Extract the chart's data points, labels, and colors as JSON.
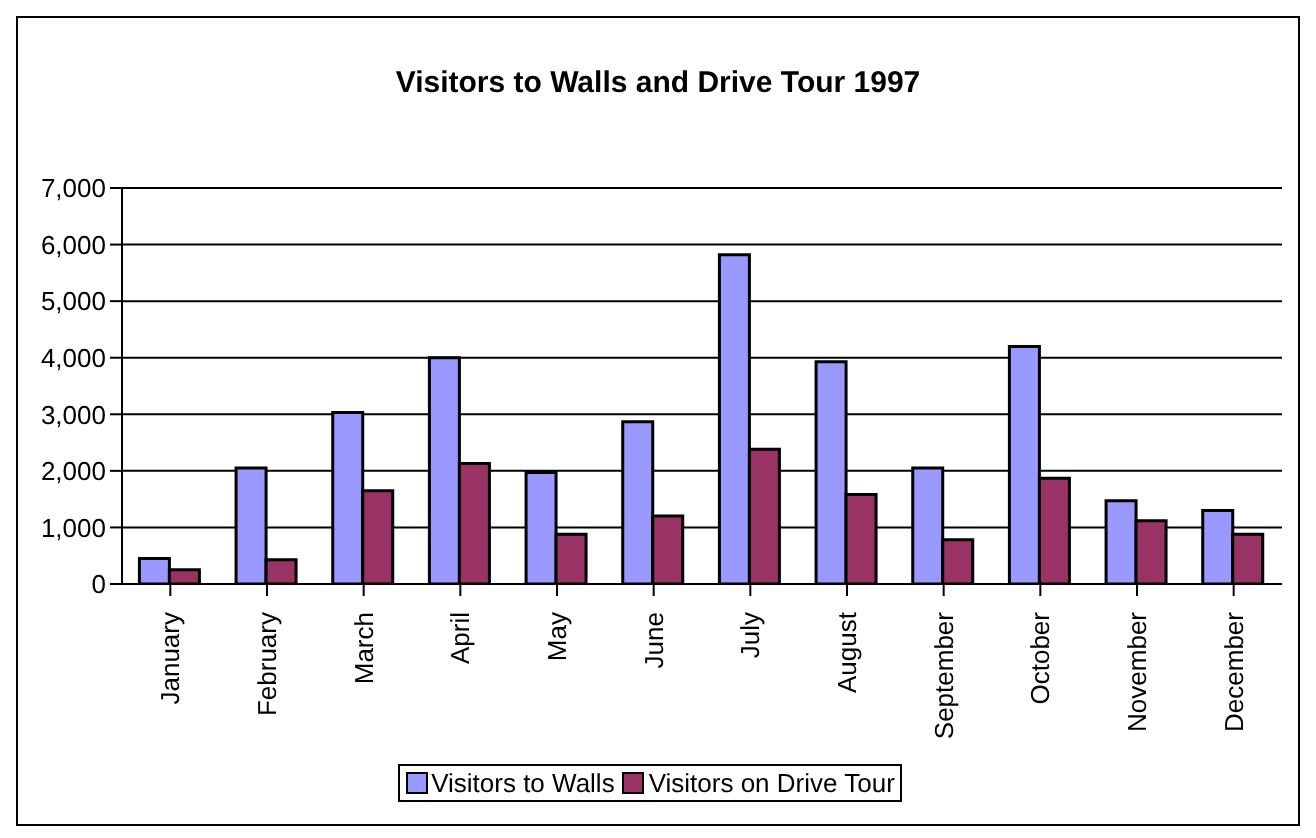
{
  "chart_data": {
    "type": "bar",
    "title": "Visitors to Walls and Drive Tour 1997",
    "categories": [
      "January",
      "February",
      "March",
      "April",
      "May",
      "June",
      "July",
      "August",
      "September",
      "October",
      "November",
      "December"
    ],
    "series": [
      {
        "name": "Visitors to Walls",
        "color": "#9999ff",
        "values": [
          450,
          2050,
          3030,
          4000,
          1970,
          2870,
          5820,
          3930,
          2050,
          4200,
          1470,
          1300
        ]
      },
      {
        "name": "Visitors on Drive Tour",
        "color": "#993366",
        "values": [
          250,
          430,
          1650,
          2130,
          880,
          1200,
          2380,
          1580,
          780,
          1870,
          1120,
          880
        ]
      }
    ],
    "ylim": [
      0,
      7000
    ],
    "yticks": [
      {
        "value": 0,
        "label": "0"
      },
      {
        "value": 1000,
        "label": "1,000"
      },
      {
        "value": 2000,
        "label": "2,000"
      },
      {
        "value": 3000,
        "label": "3,000"
      },
      {
        "value": 4000,
        "label": "4,000"
      },
      {
        "value": 5000,
        "label": "5,000"
      },
      {
        "value": 6000,
        "label": "6,000"
      },
      {
        "value": 7000,
        "label": "7,000"
      }
    ],
    "grid": "y",
    "legend": "bottom"
  }
}
